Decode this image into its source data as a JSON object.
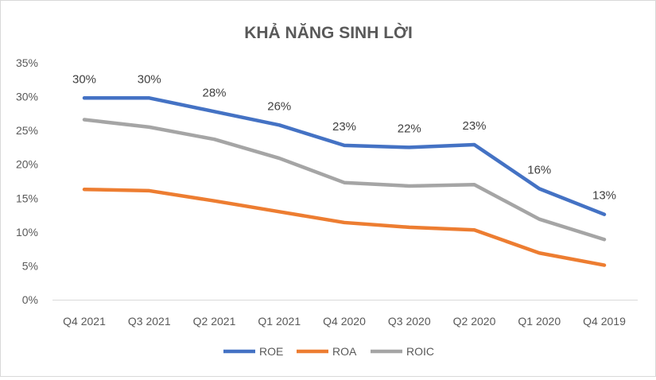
{
  "chart_data": {
    "type": "line",
    "title": "KHẢ NĂNG SINH LỜI",
    "xlabel": "",
    "ylabel": "",
    "categories": [
      "Q4 2021",
      "Q3 2021",
      "Q2 2021",
      "Q1 2021",
      "Q4 2020",
      "Q3 2020",
      "Q2 2020",
      "Q1 2020",
      "Q4 2019"
    ],
    "ylim": [
      0,
      35
    ],
    "yticks": [
      0,
      5,
      10,
      15,
      20,
      25,
      30,
      35
    ],
    "ytick_labels": [
      "0%",
      "5%",
      "10%",
      "15%",
      "20%",
      "25%",
      "30%",
      "35%"
    ],
    "grid": false,
    "legend_position": "bottom",
    "series": [
      {
        "name": "ROE",
        "color": "#4472c4",
        "values": [
          29.8,
          29.8,
          27.8,
          25.8,
          22.8,
          22.5,
          22.9,
          16.4,
          12.6
        ],
        "data_labels": [
          "30%",
          "30%",
          "28%",
          "26%",
          "23%",
          "22%",
          "23%",
          "16%",
          "13%"
        ]
      },
      {
        "name": "ROA",
        "color": "#ed7d31",
        "values": [
          16.3,
          16.1,
          14.6,
          13.0,
          11.4,
          10.7,
          10.3,
          6.9,
          5.1
        ]
      },
      {
        "name": "ROIC",
        "color": "#a5a5a5",
        "values": [
          26.6,
          25.5,
          23.7,
          20.9,
          17.3,
          16.8,
          17.0,
          11.9,
          8.9
        ]
      }
    ]
  }
}
